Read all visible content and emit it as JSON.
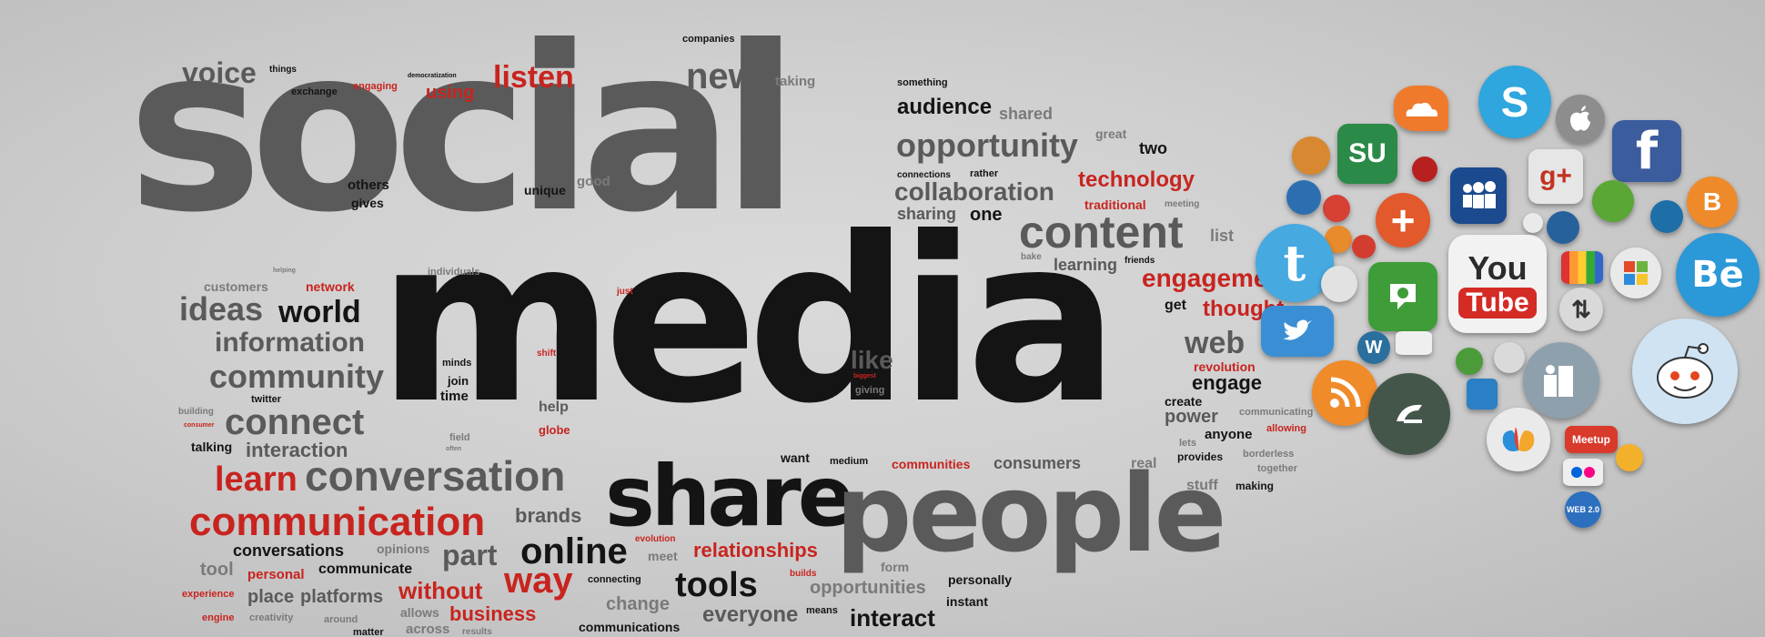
{
  "words": {
    "social": "social",
    "media": "media",
    "share": "share",
    "people": "people",
    "conversation": "conversation",
    "communication": "communication",
    "content": "content",
    "opportunity": "opportunity",
    "collaboration": "collaboration",
    "community": "community",
    "connect": "connect",
    "information": "information",
    "ideas": "ideas",
    "world": "world",
    "online": "online",
    "tools": "tools",
    "way": "way",
    "learn": "learn",
    "listen": "listen",
    "new": "new",
    "voice": "voice",
    "audience": "audience",
    "technology": "technology",
    "engagement": "engagemen",
    "web": "web",
    "engage": "engage",
    "like": "like",
    "interaction": "interaction",
    "part": "part",
    "brands": "brands",
    "relationships": "relationships",
    "without": "without",
    "business": "business",
    "interact": "interact",
    "everyone": "everyone",
    "opportunities": "opportunities",
    "consumers": "consumers",
    "communities": "communities",
    "conversations": "conversations",
    "communicate": "communicate",
    "platforms": "platforms",
    "place": "place",
    "personal": "personal",
    "tool": "tool",
    "change": "change",
    "experience": "experience",
    "engine": "engine",
    "creativity": "creativity",
    "around": "around",
    "allows": "allows",
    "across": "across",
    "results": "results",
    "matter": "matter",
    "communications": "communications",
    "connecting": "connecting",
    "means": "means",
    "instant": "instant",
    "personally": "personally",
    "form": "form",
    "meet": "meet",
    "evolution": "evolution",
    "builds": "builds",
    "opinions": "opinions",
    "want": "want",
    "medium": "medium",
    "real": "real",
    "stuff": "stuff",
    "making": "making",
    "together": "together",
    "borderless": "borderless",
    "provides": "provides",
    "lets": "lets",
    "anyone": "anyone",
    "allowing": "allowing",
    "power": "power",
    "create": "create",
    "communicating": "communicating",
    "revolution": "revolution",
    "thought": "thought",
    "get": "get",
    "learning": "learning",
    "shared": "shared",
    "great": "great",
    "two": "two",
    "one": "one",
    "sharing": "sharing",
    "traditional": "traditional",
    "meeting": "meeting",
    "connections": "connections",
    "rather": "rather",
    "something": "something",
    "taking": "taking",
    "companies": "companies",
    "using": "using",
    "engaging": "engaging",
    "exchange": "exchange",
    "things": "things",
    "democratization": "democratization",
    "others": "others",
    "gives": "gives",
    "unique": "unique",
    "good": "good",
    "customers": "customers",
    "network": "network",
    "individuals": "individuals",
    "helping": "helping",
    "just": "just",
    "minds": "minds",
    "join": "join",
    "time": "time",
    "help": "help",
    "globe": "globe",
    "shift": "shift",
    "talking": "talking",
    "building": "building",
    "twitter": "twitter",
    "consumer": "consumer",
    "giving": "giving",
    "biggest": "biggest",
    "friends": "friends",
    "list": "list",
    "bake": "bake",
    "field": "field",
    "often": "often"
  },
  "icons": [
    "skype-icon",
    "apple-icon",
    "facebook-icon",
    "stumbleupon-icon",
    "soundcloud-icon",
    "myspace-icon",
    "google-plus-icon",
    "twitter-icon",
    "youtube-icon",
    "behance-icon",
    "blogger-icon",
    "windows-icon",
    "reddit-icon",
    "rss-icon",
    "deviantart-icon",
    "wordpress-icon",
    "technorati-icon",
    "share-icon",
    "web2-icon",
    "meetup-icon",
    "flickr-icon",
    "msn-icon",
    "retweet-icon",
    "plus-icon",
    "delicious-icon"
  ],
  "icon_text": {
    "skype": "S",
    "facebook": "f",
    "youtube_top": "You",
    "youtube_bottom": "Tube",
    "behance": "Bē",
    "web2": "WEB 2.0",
    "meetup": "Meetup",
    "stumble": "SU",
    "plus": "+",
    "blogger": "B",
    "google_plus": "g+"
  },
  "colors": {
    "red": "#c8241f",
    "dark": "#141414",
    "gray": "#5a5a5a"
  }
}
